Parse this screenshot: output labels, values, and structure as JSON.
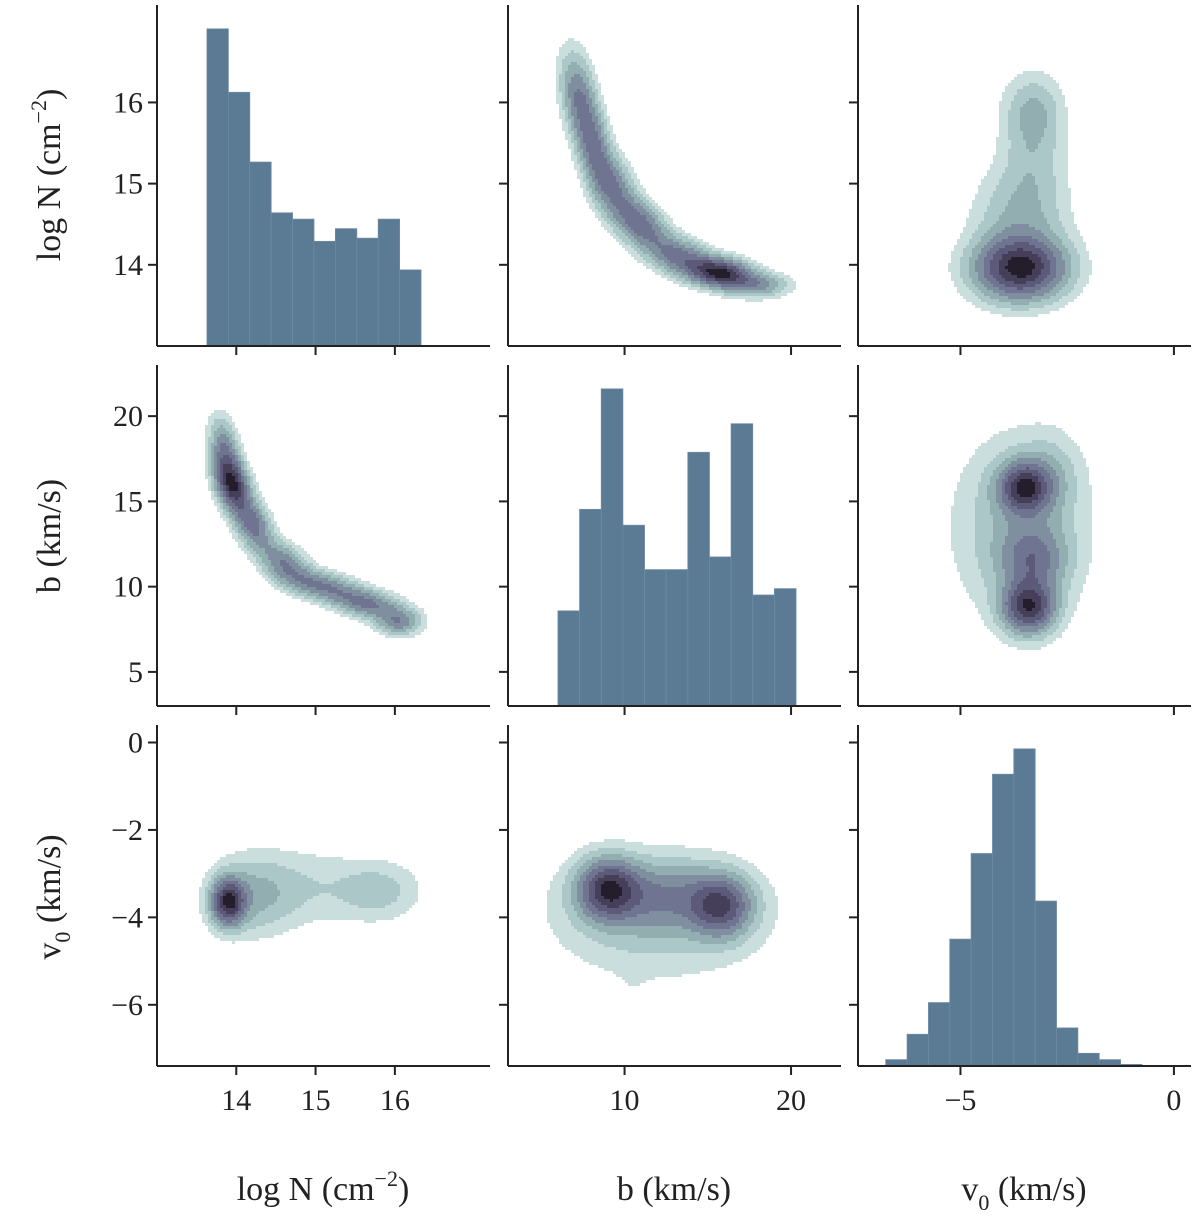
{
  "colors": {
    "hist_fill": "#5b7a94",
    "kde_levels": [
      "#cadede",
      "#acc7c7",
      "#93aeb0",
      "#7f8fa0",
      "#6f7590",
      "#5d5978",
      "#463f5a",
      "#231d2c"
    ]
  },
  "chart_data": {
    "type": "pairplot-corner-matrix",
    "variables": [
      {
        "key": "logN",
        "label_main": "log N (cm",
        "label_sup": "−2",
        "label_close": ")",
        "range": [
          13.0,
          17.2
        ],
        "ticks": [
          14,
          15,
          16
        ],
        "tick_labels": [
          "14",
          "15",
          "16"
        ],
        "ytick_labels": [
          "14",
          "15",
          "16"
        ]
      },
      {
        "key": "b",
        "label_main": "b (km/s)",
        "range": [
          3.0,
          23.0
        ],
        "ticks": [
          10,
          20
        ],
        "tick_labels": [
          "10",
          "20"
        ],
        "yticks": [
          5,
          10,
          15,
          20
        ],
        "ytick_labels": [
          "5",
          "10",
          "15",
          "20"
        ]
      },
      {
        "key": "v0",
        "label_main": "v",
        "label_sub": "0",
        "label_rest": " (km/s)",
        "range": [
          -7.4,
          0.4
        ],
        "ticks": [
          -5,
          0
        ],
        "tick_labels": [
          "−5",
          "0"
        ],
        "yticks": [
          0,
          -2,
          -4,
          -6
        ],
        "ytick_labels": [
          "0",
          "−2",
          "−4",
          "−6"
        ]
      }
    ],
    "histograms": [
      {
        "variable": "logN",
        "bin_edges": [
          13.63,
          13.9,
          14.17,
          14.44,
          14.71,
          14.98,
          15.25,
          15.52,
          15.79,
          16.06,
          16.33
        ],
        "counts": [
          1.0,
          0.8,
          0.58,
          0.42,
          0.4,
          0.33,
          0.37,
          0.34,
          0.4,
          0.24
        ]
      },
      {
        "variable": "b",
        "bin_edges": [
          6.0,
          7.3,
          8.6,
          9.9,
          11.2,
          12.5,
          13.8,
          15.1,
          16.4,
          17.7,
          19.0,
          20.3
        ],
        "counts": [
          0.3,
          0.62,
          1.0,
          0.57,
          0.43,
          0.43,
          0.8,
          0.47,
          0.89,
          0.35,
          0.37
        ]
      },
      {
        "variable": "v0",
        "bin_edges": [
          -6.75,
          -6.25,
          -5.75,
          -5.25,
          -4.75,
          -4.25,
          -3.75,
          -3.25,
          -2.75,
          -2.25,
          -1.75,
          -1.25,
          -0.75,
          -0.25
        ],
        "counts": [
          0.02,
          0.1,
          0.2,
          0.4,
          0.67,
          0.92,
          1.0,
          0.52,
          0.12,
          0.04,
          0.02,
          0.005,
          0.0
        ]
      }
    ],
    "kde_panels": [
      {
        "x": "b",
        "y": "logN",
        "components": [
          {
            "mx": 7.2,
            "my": 16.1,
            "sx": 0.7,
            "sy": 0.35,
            "rho": -0.3,
            "w": 0.8
          },
          {
            "mx": 8.1,
            "my": 15.5,
            "sx": 0.7,
            "sy": 0.35,
            "rho": -0.4,
            "w": 0.9
          },
          {
            "mx": 9.3,
            "my": 14.95,
            "sx": 0.9,
            "sy": 0.28,
            "rho": -0.4,
            "w": 0.9
          },
          {
            "mx": 11.0,
            "my": 14.5,
            "sx": 1.0,
            "sy": 0.2,
            "rho": -0.4,
            "w": 1.0
          },
          {
            "mx": 13.3,
            "my": 14.1,
            "sx": 1.3,
            "sy": 0.17,
            "rho": -0.4,
            "w": 1.0
          },
          {
            "mx": 15.8,
            "my": 13.9,
            "sx": 1.2,
            "sy": 0.12,
            "rho": -0.2,
            "w": 1.8
          },
          {
            "mx": 18.0,
            "my": 13.75,
            "sx": 1.2,
            "sy": 0.1,
            "rho": 0.0,
            "w": 0.7
          }
        ]
      },
      {
        "x": "v0",
        "y": "logN",
        "components": [
          {
            "mx": -3.6,
            "my": 13.95,
            "sx": 0.7,
            "sy": 0.25,
            "rho": 0.0,
            "w": 2.2
          },
          {
            "mx": -3.6,
            "my": 14.5,
            "sx": 0.7,
            "sy": 0.45,
            "rho": 0.0,
            "w": 0.6
          },
          {
            "mx": -3.3,
            "my": 15.3,
            "sx": 0.5,
            "sy": 0.4,
            "rho": 0.0,
            "w": 0.35
          },
          {
            "mx": -3.3,
            "my": 15.9,
            "sx": 0.45,
            "sy": 0.3,
            "rho": 0.0,
            "w": 0.55
          }
        ]
      },
      {
        "x": "logN",
        "y": "b",
        "components": [
          {
            "mx": 13.85,
            "my": 18.0,
            "sx": 0.12,
            "sy": 1.2,
            "rho": -0.3,
            "w": 0.9
          },
          {
            "mx": 13.95,
            "my": 16.0,
            "sx": 0.14,
            "sy": 1.0,
            "rho": -0.3,
            "w": 1.8
          },
          {
            "mx": 14.2,
            "my": 13.7,
            "sx": 0.16,
            "sy": 1.0,
            "rho": -0.4,
            "w": 1.1
          },
          {
            "mx": 14.6,
            "my": 11.4,
            "sx": 0.2,
            "sy": 0.8,
            "rho": -0.4,
            "w": 0.9
          },
          {
            "mx": 15.05,
            "my": 10.1,
            "sx": 0.3,
            "sy": 0.6,
            "rho": -0.4,
            "w": 0.9
          },
          {
            "mx": 15.65,
            "my": 9.0,
            "sx": 0.3,
            "sy": 0.6,
            "rho": -0.4,
            "w": 1.0
          },
          {
            "mx": 16.05,
            "my": 7.9,
            "sx": 0.18,
            "sy": 0.5,
            "rho": 0.0,
            "w": 0.8
          }
        ]
      },
      {
        "x": "v0",
        "y": "b",
        "components": [
          {
            "mx": -3.5,
            "my": 15.8,
            "sx": 0.4,
            "sy": 1.0,
            "rho": 0.0,
            "w": 1.7
          },
          {
            "mx": -3.4,
            "my": 8.8,
            "sx": 0.4,
            "sy": 1.0,
            "rho": 0.0,
            "w": 1.8
          },
          {
            "mx": -3.3,
            "my": 11.6,
            "sx": 0.5,
            "sy": 1.3,
            "rho": 0.0,
            "w": 0.9
          },
          {
            "mx": -3.6,
            "my": 13.5,
            "sx": 1.0,
            "sy": 3.5,
            "rho": 0.0,
            "w": 0.5
          },
          {
            "mx": -2.9,
            "my": 16.5,
            "sx": 0.45,
            "sy": 1.5,
            "rho": 0.0,
            "w": 0.3
          }
        ]
      },
      {
        "x": "logN",
        "y": "v0",
        "components": [
          {
            "mx": 13.9,
            "my": -3.65,
            "sx": 0.14,
            "sy": 0.35,
            "rho": 0.0,
            "w": 2.3
          },
          {
            "mx": 14.2,
            "my": -3.5,
            "sx": 0.35,
            "sy": 0.6,
            "rho": 0.0,
            "w": 0.6
          },
          {
            "mx": 14.9,
            "my": -3.3,
            "sx": 0.5,
            "sy": 0.6,
            "rho": 0.0,
            "w": 0.3
          },
          {
            "mx": 15.8,
            "my": -3.4,
            "sx": 0.35,
            "sy": 0.45,
            "rho": 0.0,
            "w": 0.45
          },
          {
            "mx": 15.25,
            "my": -4.75,
            "sx": 0.12,
            "sy": 0.15,
            "rho": 0.0,
            "w": 0.06
          },
          {
            "mx": 16.1,
            "my": -4.6,
            "sx": 0.06,
            "sy": 0.12,
            "rho": 0.0,
            "w": 0.05
          }
        ]
      },
      {
        "x": "b",
        "y": "v0",
        "components": [
          {
            "mx": 9.0,
            "my": -3.35,
            "sx": 1.2,
            "sy": 0.45,
            "rho": 0.0,
            "w": 1.8
          },
          {
            "mx": 15.8,
            "my": -3.75,
            "sx": 1.2,
            "sy": 0.45,
            "rho": 0.0,
            "w": 1.5
          },
          {
            "mx": 12.4,
            "my": -3.5,
            "sx": 2.5,
            "sy": 0.5,
            "rho": 0.0,
            "w": 0.8
          },
          {
            "mx": 12.0,
            "my": -4.0,
            "sx": 4.2,
            "sy": 0.9,
            "rho": 0.0,
            "w": 0.45
          },
          {
            "mx": 10.5,
            "my": -5.6,
            "sx": 0.8,
            "sy": 0.3,
            "rho": 0.0,
            "w": 0.05
          }
        ]
      }
    ],
    "kde_levels": [
      0.06,
      0.13,
      0.22,
      0.33,
      0.46,
      0.6,
      0.75,
      0.9
    ]
  }
}
